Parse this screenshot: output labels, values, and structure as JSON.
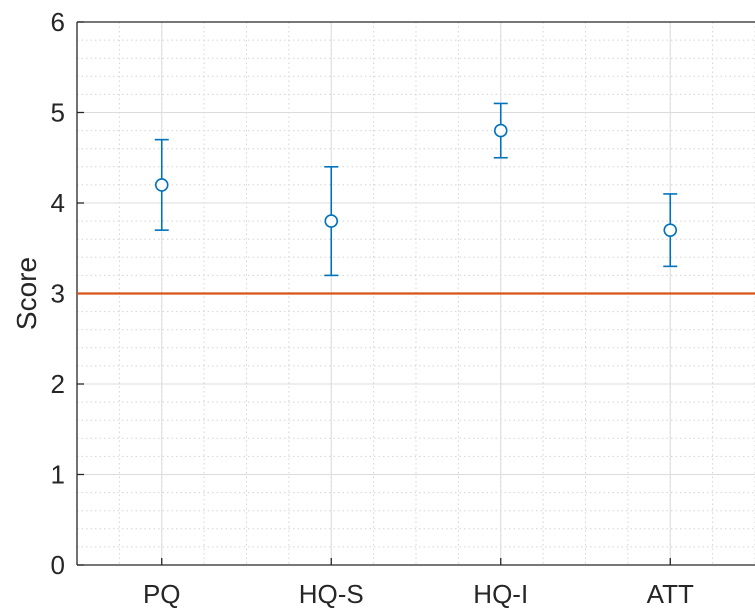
{
  "chart_data": {
    "type": "scatter",
    "title": "",
    "xlabel": "",
    "ylabel": "Score",
    "categories": [
      "PQ",
      "HQ-S",
      "HQ-I",
      "ATT"
    ],
    "series": [
      {
        "values": [
          4.2,
          3.8,
          4.8,
          3.7
        ],
        "lower": [
          3.7,
          3.2,
          4.5,
          3.3
        ],
        "upper": [
          4.7,
          4.4,
          5.1,
          4.1
        ],
        "color": "#0072BD",
        "marker": "circle",
        "error_bars": true
      }
    ],
    "reference_line": {
      "y": 3,
      "color": "#D95319"
    },
    "ylim": [
      0,
      6
    ],
    "yticks": [
      "0",
      "1",
      "2",
      "3",
      "4",
      "5",
      "6"
    ],
    "grid": "major and minor"
  }
}
